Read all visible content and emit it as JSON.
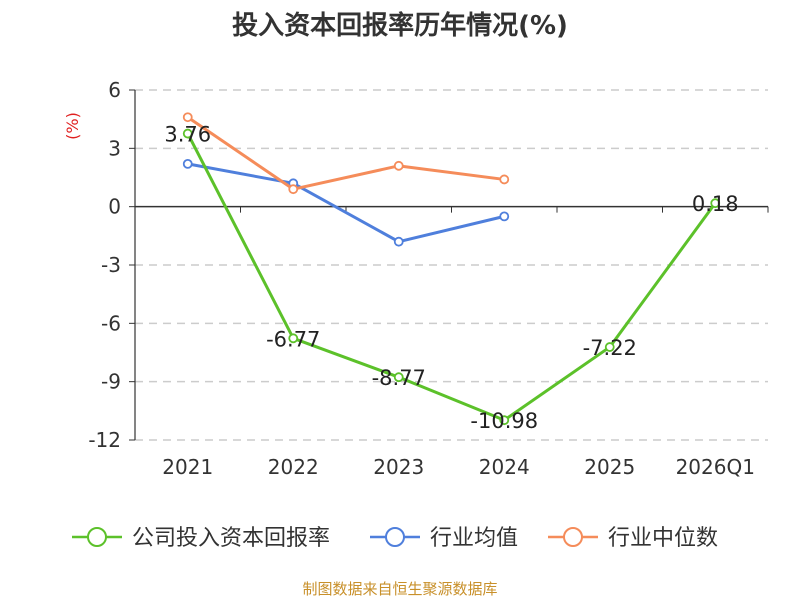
{
  "chart_data": {
    "type": "line",
    "title": "投入资本回报率历年情况(%)",
    "ylabel": "(%)",
    "xlabel": "",
    "categories": [
      "2021",
      "2022",
      "2023",
      "2024",
      "2025",
      "2026Q1"
    ],
    "ylim": [
      -12,
      6
    ],
    "yticks": [
      6,
      3,
      0,
      -3,
      -6,
      -9,
      -12
    ],
    "grid": true,
    "legend_position": "bottom",
    "series": [
      {
        "name": "公司投入资本回报率",
        "color": "#5cc12a",
        "values": [
          3.76,
          -6.77,
          -8.77,
          -10.98,
          -7.22,
          0.18
        ],
        "labels": [
          "3.76",
          "-6.77",
          "-8.77",
          "-10.98",
          "-7.22",
          "0.18"
        ]
      },
      {
        "name": "行业均值",
        "color": "#4f7fdc",
        "values": [
          2.2,
          1.2,
          -1.8,
          -0.5,
          null,
          null
        ]
      },
      {
        "name": "行业中位数",
        "color": "#f58c5a",
        "values": [
          4.6,
          0.9,
          2.1,
          1.4,
          null,
          null
        ]
      }
    ],
    "source": "制图数据来自恒生聚源数据库"
  }
}
